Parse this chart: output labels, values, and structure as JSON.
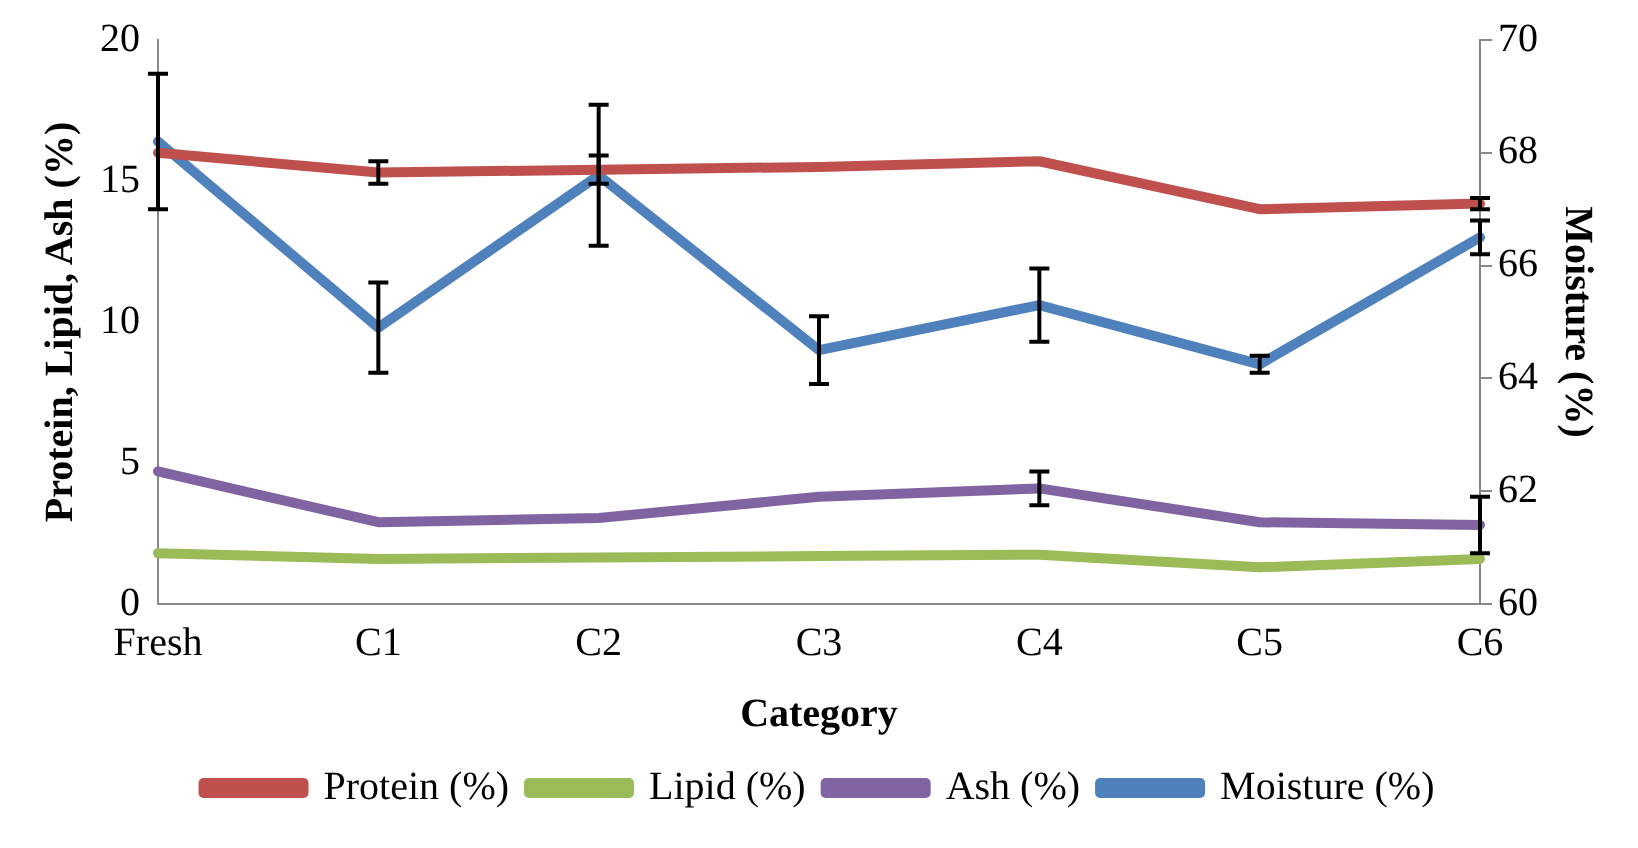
{
  "chart_data": {
    "type": "line",
    "xlabel": "Category",
    "ylabel": "Protein, Lipid, Ash (%)",
    "y2label": "Moisture (%)",
    "categories": [
      "Fresh",
      "C1",
      "C2",
      "C3",
      "C4",
      "C5",
      "C6"
    ],
    "series": [
      {
        "name": "Protein (%)",
        "color": "#c0504d",
        "values": [
          16.0,
          15.3,
          15.4,
          15.5,
          15.7,
          14.0,
          14.2
        ],
        "errors": [
          null,
          0.4,
          0.5,
          null,
          null,
          null,
          0.2
        ]
      },
      {
        "name": "Lipid (%)",
        "color": "#9bbb59",
        "values": [
          1.8,
          1.6,
          1.65,
          1.7,
          1.75,
          1.3,
          1.6
        ]
      },
      {
        "name": "Ash (%)",
        "color": "#8064a2",
        "values": [
          4.7,
          2.9,
          3.05,
          3.8,
          4.1,
          2.9,
          2.8
        ],
        "errors": [
          null,
          null,
          null,
          null,
          0.6,
          null,
          1.0
        ]
      },
      {
        "name": "Moisture (%)",
        "color": "#4f81bd",
        "axis": "y2",
        "values": [
          68.2,
          64.9,
          67.6,
          64.5,
          65.3,
          64.25,
          66.5
        ],
        "errors": [
          1.2,
          0.8,
          1.25,
          0.6,
          0.65,
          0.15,
          0.3
        ]
      }
    ],
    "ylim": [
      0,
      20
    ],
    "yticks": [
      0,
      5,
      10,
      15,
      20
    ],
    "y2lim": [
      60,
      70
    ],
    "y2ticks": [
      60,
      62,
      64,
      66,
      68,
      70
    ],
    "grid": false,
    "legend": "bottom",
    "marker": "none",
    "line_style": "solid"
  }
}
